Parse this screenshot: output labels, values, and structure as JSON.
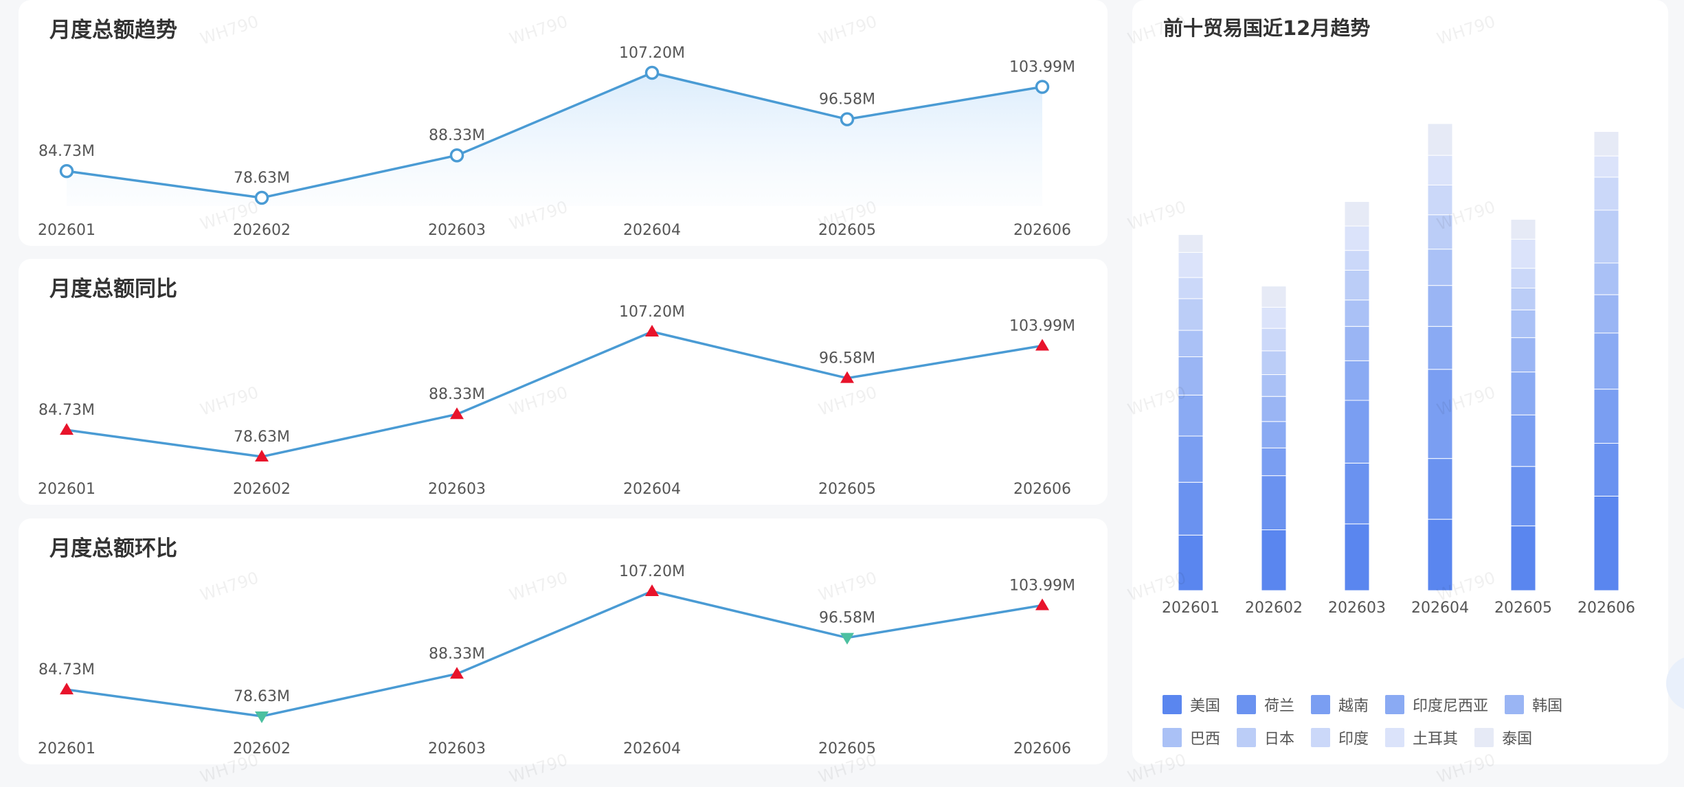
{
  "cards": {
    "trend_title": "月度总额趋势",
    "yoy_title": "月度总额同比",
    "mom_title": "月度总额环比",
    "top10_title": "前十贸易国近12月趋势"
  },
  "watermark": "WH790",
  "colors": {
    "line": "#4a9bd4",
    "up": "#e8132b",
    "down": "#4cc0a0",
    "stack": [
      "#5a86ef",
      "#6a92f0",
      "#7a9ef2",
      "#8aaaf3",
      "#9ab5f4",
      "#aac1f6",
      "#bbcdf7",
      "#cbd8f9",
      "#dbe3fa",
      "#e6eaf6"
    ]
  },
  "chart_data": [
    {
      "type": "area",
      "id": "trend",
      "categories": [
        "202601",
        "202602",
        "202603",
        "202604",
        "202605",
        "202606"
      ],
      "values": [
        84.73,
        78.63,
        88.33,
        107.2,
        96.58,
        103.99
      ],
      "labels": [
        "84.73M",
        "78.63M",
        "88.33M",
        "107.20M",
        "96.58M",
        "103.99M"
      ],
      "ylim": [
        78.63,
        107.2
      ]
    },
    {
      "type": "line",
      "id": "yoy",
      "categories": [
        "202601",
        "202602",
        "202603",
        "202604",
        "202605",
        "202606"
      ],
      "values": [
        84.73,
        78.63,
        88.33,
        107.2,
        96.58,
        103.99
      ],
      "labels": [
        "84.73M",
        "78.63M",
        "88.33M",
        "107.20M",
        "96.58M",
        "103.99M"
      ],
      "markers": [
        "up",
        "up",
        "up",
        "up",
        "up",
        "up"
      ],
      "ylim": [
        78.63,
        107.2
      ]
    },
    {
      "type": "line",
      "id": "mom",
      "categories": [
        "202601",
        "202602",
        "202603",
        "202604",
        "202605",
        "202606"
      ],
      "values": [
        84.73,
        78.63,
        88.33,
        107.2,
        96.58,
        103.99
      ],
      "labels": [
        "84.73M",
        "78.63M",
        "88.33M",
        "107.20M",
        "96.58M",
        "103.99M"
      ],
      "markers": [
        "up",
        "down",
        "up",
        "up",
        "down",
        "up"
      ],
      "ylim": [
        78.63,
        107.2
      ]
    },
    {
      "type": "bar",
      "id": "top10",
      "stacked": true,
      "categories": [
        "202601",
        "202602",
        "202603",
        "202604",
        "202605",
        "202606"
      ],
      "series": [
        {
          "name": "美国",
          "values": [
            84,
            92,
            101,
            108,
            98,
            143
          ]
        },
        {
          "name": "荷兰",
          "values": [
            80,
            82,
            92,
            92,
            90,
            80
          ]
        },
        {
          "name": "越南",
          "values": [
            70,
            42,
            95,
            135,
            78,
            82
          ]
        },
        {
          "name": "印度尼西亚",
          "values": [
            62,
            40,
            60,
            65,
            65,
            85
          ]
        },
        {
          "name": "韩国",
          "values": [
            58,
            38,
            52,
            62,
            52,
            58
          ]
        },
        {
          "name": "巴西",
          "values": [
            40,
            33,
            40,
            55,
            42,
            48
          ]
        },
        {
          "name": "日本",
          "values": [
            48,
            36,
            45,
            52,
            33,
            80
          ]
        },
        {
          "name": "印度",
          "values": [
            32,
            34,
            30,
            45,
            30,
            50
          ]
        },
        {
          "name": "土耳其",
          "values": [
            38,
            32,
            37,
            45,
            44,
            32
          ]
        },
        {
          "name": "泰国",
          "values": [
            27,
            32,
            37,
            48,
            30,
            37
          ]
        }
      ]
    }
  ]
}
